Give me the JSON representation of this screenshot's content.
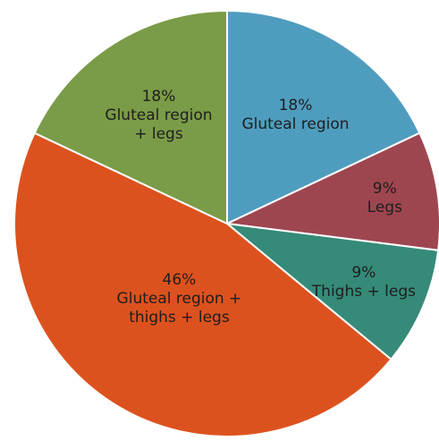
{
  "chart_data": {
    "type": "pie",
    "categories": [
      "Gluteal region",
      "Legs",
      "Thighs + legs",
      "Gluteal region + thighs + legs",
      "Gluteal region + legs"
    ],
    "values": [
      18,
      9,
      9,
      46,
      18
    ],
    "value_labels": [
      "18%",
      "9%",
      "9%",
      "46%",
      "18%"
    ],
    "colors": [
      "#4f9dbe",
      "#9e4650",
      "#358a78",
      "#dc521e",
      "#7a9b47"
    ]
  }
}
